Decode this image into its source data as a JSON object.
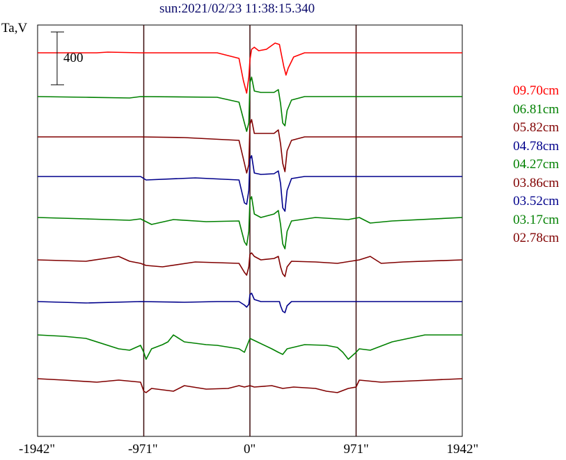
{
  "chart_data": {
    "type": "line",
    "title": "sun:2021/02/23 11:38:15.340",
    "ylabel": "Ta,V",
    "scale_bar_label": "400",
    "x_tick_labels": [
      "-1942\"",
      "-971\"",
      "0\"",
      "971\"",
      "1942\""
    ],
    "x_ticks": [
      -1942,
      -971,
      0,
      971,
      1942
    ],
    "xlim": [
      -1942,
      1942
    ],
    "series": [
      {
        "name": "09.70cm",
        "color": "#ff0000",
        "baseline": 76,
        "points": [
          [
            -1942,
            0
          ],
          [
            -1400,
            0
          ],
          [
            -1300,
            -1
          ],
          [
            -1000,
            0
          ],
          [
            -300,
            0
          ],
          [
            -100,
            8
          ],
          [
            -60,
            40
          ],
          [
            -30,
            58
          ],
          [
            -10,
            35
          ],
          [
            0,
            10
          ],
          [
            15,
            -5
          ],
          [
            40,
            -8
          ],
          [
            80,
            -3
          ],
          [
            150,
            -5
          ],
          [
            230,
            -14
          ],
          [
            270,
            -12
          ],
          [
            290,
            4
          ],
          [
            310,
            20
          ],
          [
            330,
            32
          ],
          [
            350,
            22
          ],
          [
            400,
            6
          ],
          [
            500,
            0
          ],
          [
            1942,
            0
          ]
        ]
      },
      {
        "name": "06.81cm",
        "color": "#008000",
        "baseline": 139,
        "points": [
          [
            -1942,
            0
          ],
          [
            -1500,
            1
          ],
          [
            -1100,
            2
          ],
          [
            -1000,
            0
          ],
          [
            -300,
            1
          ],
          [
            -100,
            8
          ],
          [
            -50,
            38
          ],
          [
            -30,
            50
          ],
          [
            -10,
            38
          ],
          [
            0,
            -20
          ],
          [
            15,
            -28
          ],
          [
            40,
            -8
          ],
          [
            100,
            -6
          ],
          [
            220,
            -6
          ],
          [
            260,
            -10
          ],
          [
            280,
            10
          ],
          [
            300,
            38
          ],
          [
            320,
            42
          ],
          [
            340,
            20
          ],
          [
            380,
            5
          ],
          [
            500,
            0
          ],
          [
            1942,
            0
          ]
        ]
      },
      {
        "name": "05.82cm",
        "color": "#800000",
        "baseline": 197,
        "points": [
          [
            -1942,
            0
          ],
          [
            -1000,
            0
          ],
          [
            -600,
            1
          ],
          [
            -100,
            5
          ],
          [
            -50,
            38
          ],
          [
            -30,
            52
          ],
          [
            -10,
            40
          ],
          [
            0,
            -18
          ],
          [
            15,
            -25
          ],
          [
            40,
            -5
          ],
          [
            100,
            -5
          ],
          [
            220,
            -5
          ],
          [
            260,
            -10
          ],
          [
            280,
            10
          ],
          [
            300,
            38
          ],
          [
            320,
            50
          ],
          [
            340,
            20
          ],
          [
            380,
            5
          ],
          [
            500,
            0
          ],
          [
            1942,
            0
          ]
        ]
      },
      {
        "name": "04.78cm",
        "color": "#00008b",
        "baseline": 254,
        "points": [
          [
            -1942,
            0
          ],
          [
            -1000,
            0
          ],
          [
            -950,
            5
          ],
          [
            -500,
            2
          ],
          [
            -100,
            5
          ],
          [
            -50,
            38
          ],
          [
            -30,
            40
          ],
          [
            -10,
            20
          ],
          [
            0,
            -25
          ],
          [
            15,
            -30
          ],
          [
            40,
            -5
          ],
          [
            100,
            -3
          ],
          [
            220,
            -4
          ],
          [
            260,
            -8
          ],
          [
            280,
            10
          ],
          [
            300,
            45
          ],
          [
            320,
            50
          ],
          [
            340,
            20
          ],
          [
            380,
            3
          ],
          [
            500,
            0
          ],
          [
            1942,
            0
          ]
        ]
      },
      {
        "name": "04.27cm",
        "color": "#008000",
        "baseline": 313,
        "points": [
          [
            -1942,
            0
          ],
          [
            -1500,
            2
          ],
          [
            -1100,
            4
          ],
          [
            -1000,
            2
          ],
          [
            -900,
            10
          ],
          [
            -700,
            3
          ],
          [
            -400,
            6
          ],
          [
            -100,
            5
          ],
          [
            -50,
            35
          ],
          [
            -30,
            40
          ],
          [
            -10,
            20
          ],
          [
            0,
            -25
          ],
          [
            15,
            -30
          ],
          [
            40,
            -5
          ],
          [
            100,
            0
          ],
          [
            220,
            -5
          ],
          [
            260,
            -10
          ],
          [
            280,
            10
          ],
          [
            300,
            38
          ],
          [
            320,
            45
          ],
          [
            340,
            20
          ],
          [
            380,
            5
          ],
          [
            600,
            0
          ],
          [
            900,
            3
          ],
          [
            1000,
            0
          ],
          [
            1100,
            8
          ],
          [
            1300,
            5
          ],
          [
            1942,
            0
          ]
        ]
      },
      {
        "name": "03.86cm",
        "color": "#800000",
        "baseline": 374,
        "points": [
          [
            -1942,
            0
          ],
          [
            -1500,
            2
          ],
          [
            -1200,
            -5
          ],
          [
            -1100,
            2
          ],
          [
            -1000,
            5
          ],
          [
            -950,
            8
          ],
          [
            -800,
            10
          ],
          [
            -500,
            3
          ],
          [
            -100,
            5
          ],
          [
            -50,
            18
          ],
          [
            -30,
            22
          ],
          [
            -10,
            10
          ],
          [
            0,
            -8
          ],
          [
            15,
            -10
          ],
          [
            40,
            -5
          ],
          [
            100,
            0
          ],
          [
            220,
            -2
          ],
          [
            260,
            -5
          ],
          [
            280,
            10
          ],
          [
            300,
            20
          ],
          [
            320,
            24
          ],
          [
            340,
            10
          ],
          [
            380,
            2
          ],
          [
            600,
            3
          ],
          [
            800,
            5
          ],
          [
            1000,
            0
          ],
          [
            1100,
            -5
          ],
          [
            1200,
            5
          ],
          [
            1400,
            3
          ],
          [
            1942,
            0
          ]
        ]
      },
      {
        "name": "03.52cm",
        "color": "#00008b",
        "baseline": 434,
        "points": [
          [
            -1942,
            0
          ],
          [
            -1500,
            2
          ],
          [
            -1000,
            0
          ],
          [
            -600,
            1
          ],
          [
            -300,
            0
          ],
          [
            -100,
            0
          ],
          [
            -50,
            5
          ],
          [
            -30,
            8
          ],
          [
            -10,
            4
          ],
          [
            0,
            -10
          ],
          [
            15,
            -12
          ],
          [
            40,
            -3
          ],
          [
            100,
            0
          ],
          [
            240,
            0
          ],
          [
            270,
            0
          ],
          [
            280,
            6
          ],
          [
            300,
            14
          ],
          [
            320,
            16
          ],
          [
            340,
            6
          ],
          [
            380,
            0
          ],
          [
            600,
            0
          ],
          [
            1000,
            0
          ],
          [
            1942,
            0
          ]
        ]
      },
      {
        "name": "03.17cm",
        "color": "#008000",
        "baseline": 482,
        "points": [
          [
            -1942,
            0
          ],
          [
            -1700,
            2
          ],
          [
            -1500,
            5
          ],
          [
            -1200,
            20
          ],
          [
            -1100,
            22
          ],
          [
            -1000,
            15
          ],
          [
            -971,
            25
          ],
          [
            -950,
            35
          ],
          [
            -900,
            20
          ],
          [
            -800,
            14
          ],
          [
            -750,
            10
          ],
          [
            -700,
            0
          ],
          [
            -600,
            10
          ],
          [
            -400,
            14
          ],
          [
            -300,
            15
          ],
          [
            -100,
            20
          ],
          [
            -50,
            25
          ],
          [
            0,
            5
          ],
          [
            40,
            8
          ],
          [
            200,
            20
          ],
          [
            260,
            25
          ],
          [
            300,
            28
          ],
          [
            340,
            20
          ],
          [
            500,
            14
          ],
          [
            700,
            15
          ],
          [
            800,
            18
          ],
          [
            850,
            25
          ],
          [
            900,
            35
          ],
          [
            971,
            25
          ],
          [
            1000,
            20
          ],
          [
            1100,
            22
          ],
          [
            1300,
            10
          ],
          [
            1600,
            0
          ],
          [
            1942,
            0
          ]
        ]
      },
      {
        "name": "02.78cm",
        "color": "#800000",
        "baseline": 545,
        "points": [
          [
            -1942,
            0
          ],
          [
            -1700,
            2
          ],
          [
            -1400,
            5
          ],
          [
            -1200,
            2
          ],
          [
            -1000,
            5
          ],
          [
            -971,
            18
          ],
          [
            -950,
            20
          ],
          [
            -900,
            14
          ],
          [
            -800,
            16
          ],
          [
            -700,
            18
          ],
          [
            -600,
            10
          ],
          [
            -400,
            15
          ],
          [
            -200,
            14
          ],
          [
            -100,
            10
          ],
          [
            -50,
            12
          ],
          [
            0,
            10
          ],
          [
            40,
            12
          ],
          [
            200,
            10
          ],
          [
            300,
            14
          ],
          [
            400,
            12
          ],
          [
            600,
            14
          ],
          [
            700,
            18
          ],
          [
            800,
            20
          ],
          [
            900,
            14
          ],
          [
            971,
            12
          ],
          [
            1000,
            2
          ],
          [
            1200,
            5
          ],
          [
            1500,
            3
          ],
          [
            1942,
            0
          ]
        ]
      }
    ]
  }
}
